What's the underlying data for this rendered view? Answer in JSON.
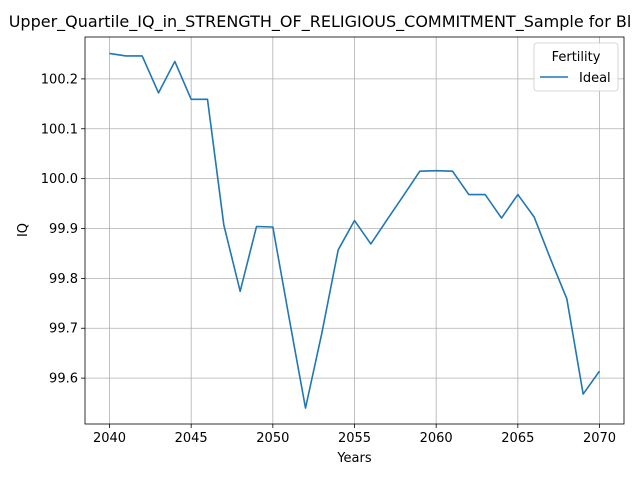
{
  "chart_data": {
    "type": "line",
    "title": "Upper_Quartile_IQ_in_STRENGTH_OF_RELIGIOUS_COMMITMENT_Sample for Bl",
    "xlabel": "Years",
    "ylabel": "IQ",
    "xlim": [
      2038.5,
      2071.5
    ],
    "ylim": [
      99.508,
      100.284
    ],
    "xticks": [
      2040,
      2045,
      2050,
      2055,
      2060,
      2065,
      2070
    ],
    "yticks": [
      99.6,
      99.7,
      99.8,
      99.9,
      100.0,
      100.1,
      100.2
    ],
    "ytick_labels": [
      "99.6",
      "99.7",
      "99.8",
      "99.9",
      "100.0",
      "100.1",
      "100.2"
    ],
    "grid": true,
    "legend": {
      "title": "Fertility",
      "placement": "top-right"
    },
    "series": [
      {
        "name": "Ideal",
        "color": "#1f77b4",
        "x": [
          2040,
          2041,
          2042,
          2043,
          2044,
          2045,
          2046,
          2047,
          2048,
          2049,
          2050,
          2051,
          2052,
          2053,
          2054,
          2055,
          2056,
          2057,
          2058,
          2059,
          2060,
          2061,
          2062,
          2063,
          2064,
          2065,
          2066,
          2067,
          2068,
          2069,
          2070
        ],
        "y": [
          100.251,
          100.246,
          100.246,
          100.172,
          100.235,
          100.159,
          100.159,
          99.907,
          99.774,
          99.904,
          99.903,
          99.72,
          99.54,
          99.69,
          99.857,
          99.916,
          99.869,
          99.918,
          99.966,
          100.015,
          100.016,
          100.015,
          99.968,
          99.968,
          99.921,
          99.968,
          99.923,
          99.839,
          99.759,
          99.568,
          99.614
        ]
      }
    ]
  }
}
